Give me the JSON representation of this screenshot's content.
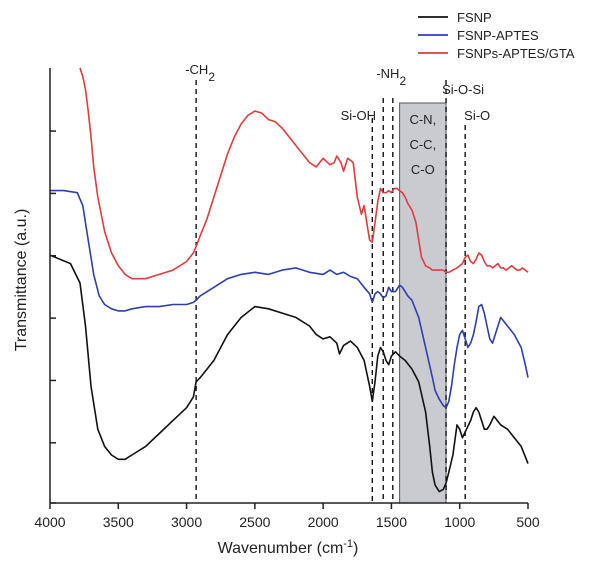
{
  "chart_data": {
    "type": "line",
    "title": "",
    "xlabel_main": "Wavenumber (cm",
    "xlabel_sup": "-1",
    "xlabel_close": ")",
    "ylabel": "Transmittance (a.u.)",
    "xlim": [
      4000,
      500
    ],
    "x_reversed": true,
    "ylim": [
      0,
      1
    ],
    "y_ticks_labeled": false,
    "x_ticks": [
      4000,
      3500,
      3000,
      2500,
      2000,
      1500,
      1000,
      500
    ],
    "x_tick_labels": [
      "4000",
      "3500",
      "3000",
      "2500",
      "2000",
      "1500",
      "1000",
      "500"
    ],
    "y_ticks": [
      0.0,
      0.14,
      0.285,
      0.43,
      0.575,
      0.72,
      0.865
    ],
    "grid": false,
    "legend_position": "top-right",
    "shaded_band": {
      "from": 1440,
      "to": 1100,
      "color": "#c9cbd0",
      "border": "#555555"
    },
    "vlines": [
      {
        "x": 2930,
        "label": "-CH",
        "sub": "2"
      },
      {
        "x": 1640,
        "label": "Si-OH",
        "sub": ""
      },
      {
        "x": 1560,
        "label": "-NH",
        "sub": "2"
      },
      {
        "x": 1490,
        "label": "",
        "sub": ""
      },
      {
        "x": 1100,
        "label": "Si-O-Si",
        "sub": ""
      },
      {
        "x": 960,
        "label": "Si-O",
        "sub": ""
      }
    ],
    "band_labels": [
      "C-N,",
      "C-C,",
      "C-O"
    ],
    "series": [
      {
        "name": "FSNP",
        "color": "#111111",
        "x": [
          4000,
          3850,
          3780,
          3740,
          3700,
          3650,
          3600,
          3550,
          3500,
          3450,
          3400,
          3300,
          3200,
          3100,
          3000,
          2950,
          2930,
          2900,
          2850,
          2800,
          2750,
          2700,
          2600,
          2500,
          2400,
          2300,
          2200,
          2100,
          2050,
          2000,
          1950,
          1900,
          1880,
          1850,
          1800,
          1750,
          1700,
          1660,
          1640,
          1620,
          1600,
          1580,
          1560,
          1540,
          1520,
          1500,
          1470,
          1440,
          1400,
          1350,
          1300,
          1250,
          1220,
          1200,
          1180,
          1150,
          1120,
          1100,
          1080,
          1050,
          1020,
          1000,
          980,
          950,
          920,
          900,
          880,
          860,
          840,
          820,
          800,
          780,
          750,
          700,
          650,
          600,
          550,
          500
        ],
        "y": [
          0.565,
          0.545,
          0.5,
          0.4,
          0.26,
          0.16,
          0.12,
          0.1,
          0.09,
          0.09,
          0.1,
          0.12,
          0.15,
          0.18,
          0.21,
          0.235,
          0.27,
          0.28,
          0.3,
          0.32,
          0.35,
          0.38,
          0.42,
          0.445,
          0.44,
          0.43,
          0.42,
          0.4,
          0.38,
          0.37,
          0.375,
          0.36,
          0.335,
          0.355,
          0.365,
          0.35,
          0.32,
          0.26,
          0.225,
          0.27,
          0.33,
          0.35,
          0.34,
          0.32,
          0.31,
          0.33,
          0.34,
          0.33,
          0.32,
          0.3,
          0.27,
          0.2,
          0.12,
          0.06,
          0.03,
          0.015,
          0.02,
          0.035,
          0.06,
          0.1,
          0.17,
          0.16,
          0.14,
          0.16,
          0.18,
          0.2,
          0.21,
          0.2,
          0.18,
          0.16,
          0.16,
          0.17,
          0.19,
          0.17,
          0.16,
          0.14,
          0.12,
          0.08
        ]
      },
      {
        "name": "FSNP-APTES",
        "color": "#2f3fae",
        "x": [
          4000,
          3900,
          3800,
          3760,
          3720,
          3680,
          3640,
          3600,
          3550,
          3500,
          3450,
          3400,
          3300,
          3200,
          3100,
          3000,
          2950,
          2930,
          2900,
          2800,
          2700,
          2600,
          2500,
          2400,
          2300,
          2200,
          2100,
          2000,
          1950,
          1900,
          1850,
          1800,
          1750,
          1700,
          1660,
          1640,
          1620,
          1600,
          1580,
          1560,
          1540,
          1520,
          1500,
          1470,
          1440,
          1420,
          1400,
          1380,
          1350,
          1300,
          1250,
          1200,
          1180,
          1150,
          1120,
          1100,
          1080,
          1060,
          1040,
          1020,
          1000,
          980,
          960,
          940,
          920,
          900,
          880,
          860,
          840,
          820,
          800,
          780,
          760,
          740,
          700,
          650,
          600,
          550,
          520,
          500
        ],
        "y": [
          0.715,
          0.715,
          0.71,
          0.68,
          0.6,
          0.52,
          0.47,
          0.45,
          0.44,
          0.435,
          0.435,
          0.44,
          0.445,
          0.445,
          0.45,
          0.45,
          0.455,
          0.46,
          0.47,
          0.49,
          0.51,
          0.52,
          0.525,
          0.52,
          0.53,
          0.535,
          0.525,
          0.52,
          0.53,
          0.52,
          0.525,
          0.515,
          0.51,
          0.49,
          0.475,
          0.455,
          0.475,
          0.48,
          0.475,
          0.465,
          0.47,
          0.49,
          0.48,
          0.48,
          0.495,
          0.49,
          0.48,
          0.47,
          0.46,
          0.42,
          0.35,
          0.28,
          0.25,
          0.23,
          0.215,
          0.21,
          0.225,
          0.26,
          0.31,
          0.35,
          0.38,
          0.39,
          0.37,
          0.35,
          0.36,
          0.38,
          0.41,
          0.445,
          0.45,
          0.43,
          0.4,
          0.37,
          0.36,
          0.38,
          0.42,
          0.4,
          0.38,
          0.35,
          0.31,
          0.28
        ]
      },
      {
        "name": "FSNPs-APTES/GTA",
        "color": "#e03c3c",
        "x": [
          3780,
          3760,
          3740,
          3720,
          3700,
          3680,
          3650,
          3600,
          3550,
          3500,
          3450,
          3400,
          3300,
          3200,
          3100,
          3000,
          2950,
          2930,
          2900,
          2850,
          2800,
          2750,
          2700,
          2650,
          2600,
          2550,
          2500,
          2450,
          2400,
          2350,
          2300,
          2250,
          2200,
          2150,
          2100,
          2050,
          2000,
          1950,
          1920,
          1900,
          1870,
          1850,
          1820,
          1800,
          1780,
          1750,
          1720,
          1700,
          1680,
          1660,
          1640,
          1620,
          1600,
          1580,
          1560,
          1540,
          1520,
          1500,
          1480,
          1460,
          1440,
          1420,
          1400,
          1380,
          1350,
          1320,
          1300,
          1280,
          1250,
          1220,
          1200,
          1180,
          1150,
          1120,
          1100,
          1080,
          1050,
          1020,
          1000,
          980,
          960,
          940,
          920,
          900,
          880,
          860,
          840,
          820,
          800,
          780,
          760,
          740,
          720,
          700,
          680,
          660,
          640,
          620,
          600,
          580,
          560,
          540,
          520,
          500
        ],
        "y": [
          1.0,
          0.98,
          0.95,
          0.9,
          0.84,
          0.77,
          0.7,
          0.62,
          0.57,
          0.54,
          0.52,
          0.51,
          0.51,
          0.52,
          0.53,
          0.55,
          0.57,
          0.585,
          0.61,
          0.65,
          0.7,
          0.75,
          0.8,
          0.84,
          0.87,
          0.89,
          0.9,
          0.895,
          0.88,
          0.875,
          0.86,
          0.84,
          0.82,
          0.8,
          0.78,
          0.77,
          0.79,
          0.775,
          0.78,
          0.795,
          0.78,
          0.76,
          0.79,
          0.785,
          0.78,
          0.7,
          0.66,
          0.68,
          0.64,
          0.6,
          0.595,
          0.64,
          0.69,
          0.72,
          0.71,
          0.71,
          0.715,
          0.71,
          0.72,
          0.72,
          0.715,
          0.71,
          0.7,
          0.685,
          0.67,
          0.64,
          0.6,
          0.56,
          0.54,
          0.535,
          0.53,
          0.53,
          0.53,
          0.53,
          0.525,
          0.525,
          0.53,
          0.535,
          0.54,
          0.545,
          0.56,
          0.565,
          0.55,
          0.545,
          0.555,
          0.57,
          0.565,
          0.55,
          0.54,
          0.54,
          0.535,
          0.54,
          0.545,
          0.535,
          0.535,
          0.53,
          0.535,
          0.54,
          0.535,
          0.53,
          0.53,
          0.535,
          0.53,
          0.525
        ]
      }
    ]
  }
}
